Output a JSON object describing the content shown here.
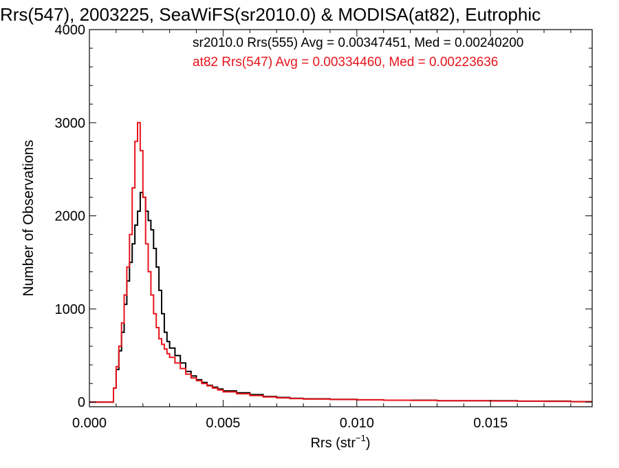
{
  "chart_data": {
    "type": "line",
    "title": "Rrs(547), 2003225, SeaWiFS(sr2010.0) & MODISA(at82), Eutrophic",
    "xlabel": "Rrs (str",
    "xlabel_sup": "−1",
    "xlabel_close": ")",
    "ylabel": "Number of Observations",
    "xlim": [
      0.0,
      0.0188
    ],
    "ylim": [
      -50,
      4000
    ],
    "xticks": [
      {
        "value": 0.0,
        "label": "0.000"
      },
      {
        "value": 0.005,
        "label": "0.005"
      },
      {
        "value": 0.01,
        "label": "0.010"
      },
      {
        "value": 0.015,
        "label": "0.015"
      }
    ],
    "yticks": [
      {
        "value": 0,
        "label": "0"
      },
      {
        "value": 1000,
        "label": "1000"
      },
      {
        "value": 2000,
        "label": "2000"
      },
      {
        "value": 3000,
        "label": "3000"
      },
      {
        "value": 4000,
        "label": "4000"
      }
    ],
    "annotations": [
      {
        "text": "sr2010.0 Rrs(555) Avg = 0.00347451, Med = 0.00240200",
        "color": "#000000"
      },
      {
        "text": "at82 Rrs(547) Avg = 0.00334460, Med = 0.00223636",
        "color": "#e8141b"
      }
    ],
    "series": [
      {
        "color": "#000000",
        "x": [
          0.0,
          0.0008,
          0.0009,
          0.001,
          0.0011,
          0.0012,
          0.0013,
          0.0014,
          0.0015,
          0.0016,
          0.0017,
          0.0018,
          0.0019,
          0.002,
          0.0021,
          0.0022,
          0.0023,
          0.0024,
          0.0025,
          0.0026,
          0.0027,
          0.0028,
          0.0029,
          0.003,
          0.0032,
          0.0034,
          0.0036,
          0.0038,
          0.004,
          0.0042,
          0.0044,
          0.0046,
          0.0048,
          0.005,
          0.0055,
          0.006,
          0.0065,
          0.007,
          0.0075,
          0.008,
          0.009,
          0.01,
          0.011,
          0.012,
          0.013,
          0.014,
          0.015,
          0.016,
          0.017,
          0.018,
          0.0188
        ],
        "values": [
          0,
          0,
          150,
          350,
          550,
          750,
          1050,
          1300,
          1500,
          1700,
          1900,
          2050,
          2250,
          2200,
          2050,
          1950,
          1850,
          1650,
          1450,
          1200,
          950,
          750,
          650,
          580,
          500,
          420,
          330,
          280,
          240,
          210,
          180,
          160,
          140,
          120,
          100,
          80,
          60,
          50,
          40,
          35,
          30,
          25,
          20,
          20,
          15,
          15,
          15,
          10,
          10,
          5,
          5
        ]
      },
      {
        "color": "#e8141b",
        "x": [
          0.0,
          0.0008,
          0.0009,
          0.001,
          0.0011,
          0.0012,
          0.0013,
          0.0014,
          0.0015,
          0.0016,
          0.0017,
          0.0018,
          0.0019,
          0.002,
          0.0021,
          0.0022,
          0.0023,
          0.0024,
          0.0025,
          0.0026,
          0.0027,
          0.0028,
          0.0029,
          0.003,
          0.0032,
          0.0034,
          0.0036,
          0.0038,
          0.004,
          0.0042,
          0.0044,
          0.0046,
          0.0048,
          0.005,
          0.0055,
          0.006,
          0.0065,
          0.007,
          0.0075,
          0.008,
          0.009,
          0.01,
          0.011,
          0.012,
          0.013,
          0.014,
          0.015,
          0.016,
          0.017,
          0.018,
          0.0188
        ],
        "values": [
          0,
          0,
          150,
          380,
          600,
          850,
          1150,
          1450,
          1800,
          2300,
          2800,
          3000,
          2700,
          2200,
          1700,
          1400,
          1150,
          950,
          800,
          680,
          620,
          570,
          520,
          480,
          420,
          360,
          300,
          260,
          230,
          200,
          175,
          150,
          130,
          110,
          90,
          70,
          55,
          45,
          38,
          32,
          28,
          24,
          20,
          18,
          15,
          14,
          12,
          10,
          8,
          5,
          5
        ]
      }
    ]
  }
}
